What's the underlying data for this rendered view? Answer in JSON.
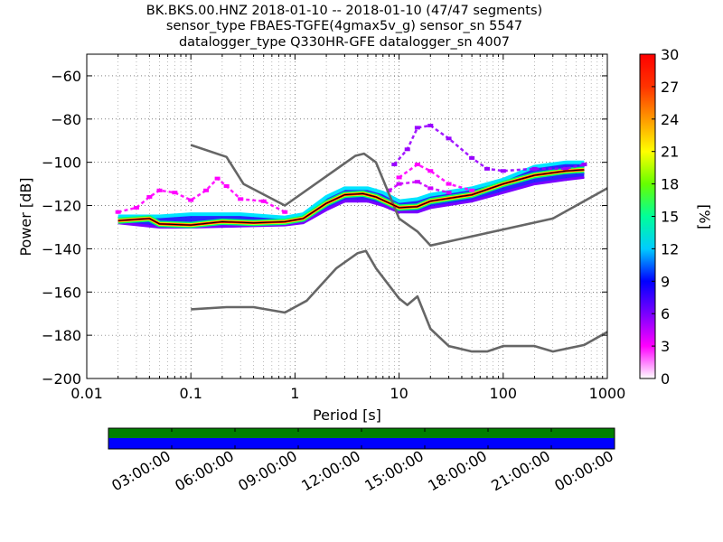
{
  "title_lines": [
    "BK.BKS.00.HNZ   2018-01-10 -- 2018-01-10  (47/47 segments)",
    "sensor_type FBAES-TGFE(4gmax5v_g) sensor_sn 5547",
    "datalogger_type Q330HR-GFE datalogger_sn 4007"
  ],
  "chart_data": {
    "type": "heatmap",
    "xlabel": "Period [s]",
    "ylabel": "Power [dB]",
    "xscale": "log",
    "xlim": [
      0.01,
      1000
    ],
    "ylim": [
      -200,
      -50
    ],
    "x_ticks": [
      "0.01",
      "0.1",
      "1",
      "10",
      "100",
      "1000"
    ],
    "y_ticks": [
      "−200",
      "−180",
      "−160",
      "−140",
      "−120",
      "−100",
      "−80",
      "−60"
    ],
    "y_tick_values": [
      -200,
      -180,
      -160,
      -140,
      -120,
      -100,
      -80,
      -60
    ],
    "grid": true,
    "colorbar": {
      "label": "[%]",
      "range": [
        0,
        30
      ],
      "ticks": [
        "0",
        "3",
        "6",
        "9",
        "12",
        "15",
        "18",
        "21",
        "24",
        "27",
        "30"
      ],
      "colors": [
        "#ffffff",
        "#ff00ff",
        "#7a00ff",
        "#0000ff",
        "#00ccff",
        "#00ff99",
        "#66ff00",
        "#ffff00",
        "#ff9900",
        "#ff3300",
        "#ff0000"
      ]
    },
    "noise_models": [
      {
        "points": [
          [
            0.1,
            -92
          ],
          [
            0.22,
            -97.5
          ],
          [
            0.32,
            -110
          ],
          [
            0.8,
            -120
          ],
          [
            3.8,
            -97
          ],
          [
            4.6,
            -96
          ],
          [
            6.0,
            -100
          ],
          [
            10,
            -126
          ],
          [
            15,
            -132
          ],
          [
            20,
            -138.5
          ],
          [
            300,
            -126
          ],
          [
            1000,
            -112
          ]
        ]
      },
      {
        "points": [
          [
            0.1,
            -168
          ],
          [
            0.22,
            -167
          ],
          [
            0.4,
            -167
          ],
          [
            0.8,
            -169.5
          ],
          [
            1.3,
            -164
          ],
          [
            2.5,
            -149
          ],
          [
            4.0,
            -142
          ],
          [
            4.8,
            -141
          ],
          [
            6.0,
            -149
          ],
          [
            10,
            -163
          ],
          [
            12,
            -166
          ],
          [
            15,
            -162
          ],
          [
            20,
            -177
          ],
          [
            30,
            -185
          ],
          [
            50,
            -187.5
          ],
          [
            70,
            -187.5
          ],
          [
            100,
            -185
          ],
          [
            200,
            -185
          ],
          [
            300,
            -187.5
          ],
          [
            600,
            -184.5
          ],
          [
            1000,
            -178.5
          ]
        ]
      }
    ],
    "mode_curve": {
      "points": [
        [
          0.02,
          -127
        ],
        [
          0.04,
          -126
        ],
        [
          0.05,
          -128.5
        ],
        [
          0.1,
          -129
        ],
        [
          0.2,
          -127.5
        ],
        [
          0.4,
          -128
        ],
        [
          0.8,
          -127.5
        ],
        [
          1.2,
          -126
        ],
        [
          2.0,
          -119
        ],
        [
          3.0,
          -115
        ],
        [
          4.5,
          -114.5
        ],
        [
          6.0,
          -116
        ],
        [
          10,
          -121
        ],
        [
          15,
          -120.5
        ],
        [
          20,
          -118
        ],
        [
          50,
          -115
        ],
        [
          100,
          -110
        ],
        [
          200,
          -106
        ],
        [
          400,
          -104
        ],
        [
          600,
          -103.5
        ]
      ]
    },
    "psd_band": {
      "upper": [
        [
          0.02,
          -125
        ],
        [
          0.05,
          -125
        ],
        [
          0.1,
          -124
        ],
        [
          0.3,
          -124
        ],
        [
          0.8,
          -125.5
        ],
        [
          1.2,
          -124
        ],
        [
          2.0,
          -116
        ],
        [
          3.0,
          -112
        ],
        [
          5.0,
          -112
        ],
        [
          7.0,
          -114
        ],
        [
          10,
          -118
        ],
        [
          15,
          -117
        ],
        [
          20,
          -115
        ],
        [
          50,
          -112
        ],
        [
          100,
          -108
        ],
        [
          200,
          -102
        ],
        [
          400,
          -100
        ],
        [
          600,
          -100
        ]
      ],
      "lower": [
        [
          0.02,
          -128
        ],
        [
          0.05,
          -130
        ],
        [
          0.1,
          -130
        ],
        [
          0.3,
          -129.5
        ],
        [
          0.8,
          -129
        ],
        [
          1.2,
          -128
        ],
        [
          2.0,
          -122
        ],
        [
          3.0,
          -118
        ],
        [
          5.0,
          -118
        ],
        [
          7.0,
          -120
        ],
        [
          10,
          -123
        ],
        [
          15,
          -123
        ],
        [
          20,
          -121
        ],
        [
          50,
          -118
        ],
        [
          100,
          -114
        ],
        [
          200,
          -110
        ],
        [
          400,
          -108
        ],
        [
          600,
          -107
        ]
      ]
    },
    "sparse_outliers": [
      {
        "color": "#ff00ff",
        "points": [
          [
            0.02,
            -123
          ],
          [
            0.03,
            -121
          ],
          [
            0.04,
            -116
          ],
          [
            0.05,
            -113
          ],
          [
            0.07,
            -114
          ],
          [
            0.1,
            -117.5
          ],
          [
            0.14,
            -113
          ],
          [
            0.18,
            -107.5
          ],
          [
            0.22,
            -111
          ],
          [
            0.3,
            -117
          ],
          [
            0.5,
            -118
          ],
          [
            0.8,
            -123
          ]
        ]
      },
      {
        "color": "#9900ff",
        "points": [
          [
            9,
            -101
          ],
          [
            12,
            -94
          ],
          [
            15,
            -84
          ],
          [
            20,
            -83
          ],
          [
            30,
            -89
          ],
          [
            50,
            -98
          ],
          [
            70,
            -103
          ],
          [
            100,
            -104
          ],
          [
            200,
            -103
          ],
          [
            400,
            -103
          ],
          [
            600,
            -101
          ]
        ]
      },
      {
        "color": "#ff00ff",
        "points": [
          [
            10,
            -107
          ],
          [
            15,
            -101
          ],
          [
            20,
            -104
          ],
          [
            30,
            -110
          ],
          [
            50,
            -113
          ]
        ]
      },
      {
        "color": "#cc00ff",
        "points": [
          [
            8,
            -113
          ],
          [
            10,
            -110
          ],
          [
            15,
            -109
          ],
          [
            20,
            -112
          ],
          [
            30,
            -114
          ]
        ]
      }
    ]
  },
  "timeline": {
    "labels": [
      "03:00:00",
      "06:00:00",
      "09:00:00",
      "12:00:00",
      "15:00:00",
      "18:00:00",
      "21:00:00",
      "00:00:00"
    ],
    "bar_colors": [
      "#008000",
      "#0000ff"
    ]
  }
}
